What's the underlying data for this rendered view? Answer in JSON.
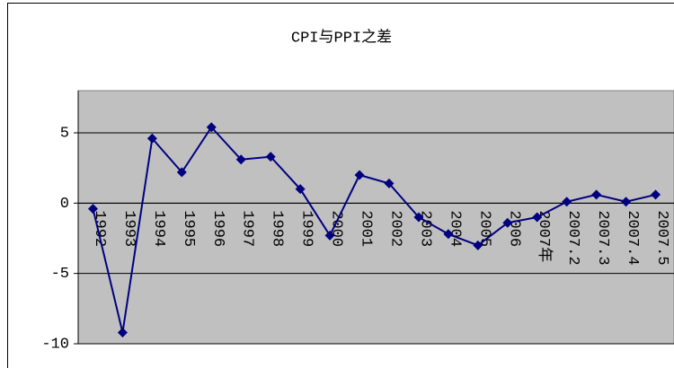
{
  "chart_data": {
    "type": "line",
    "title": "CPI与PPI之差",
    "categories": [
      "1992",
      "1993",
      "1994",
      "1995",
      "1996",
      "1997",
      "1998",
      "1999",
      "2000",
      "2001",
      "2002",
      "2003",
      "2004",
      "2005",
      "2006",
      "2007年",
      "2007.2",
      "2007.3",
      "2007.4",
      "2007.5"
    ],
    "values": [
      -0.4,
      -9.2,
      4.6,
      2.2,
      5.4,
      3.1,
      3.3,
      1.0,
      -2.3,
      2.0,
      1.4,
      -1.0,
      -2.2,
      -3.0,
      -1.4,
      -1.0,
      0.1,
      0.6,
      0.1,
      0.6
    ],
    "color": "#000080",
    "ylim": [
      -10,
      8
    ],
    "yticks": [
      -10,
      -5,
      0,
      5
    ],
    "grid": true
  }
}
